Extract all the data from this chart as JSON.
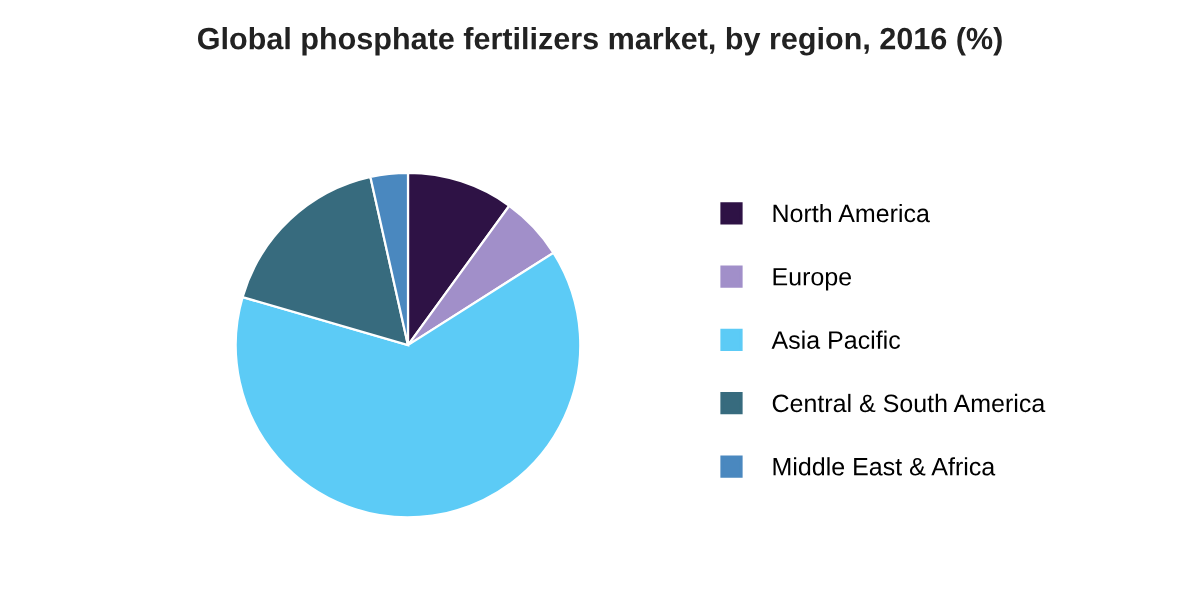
{
  "chart_data": {
    "type": "pie",
    "title": "Global phosphate fertilizers market, by region, 2016 (%)",
    "categories": [
      "North America",
      "Europe",
      "Asia Pacific",
      "Central & South America",
      "Middle East & Africa"
    ],
    "values": [
      10,
      6,
      63.5,
      17,
      3.5
    ],
    "colors": [
      "#2e1245",
      "#a18fc9",
      "#5ccbf6",
      "#376b7e",
      "#4a88bf"
    ],
    "legend": "right"
  }
}
